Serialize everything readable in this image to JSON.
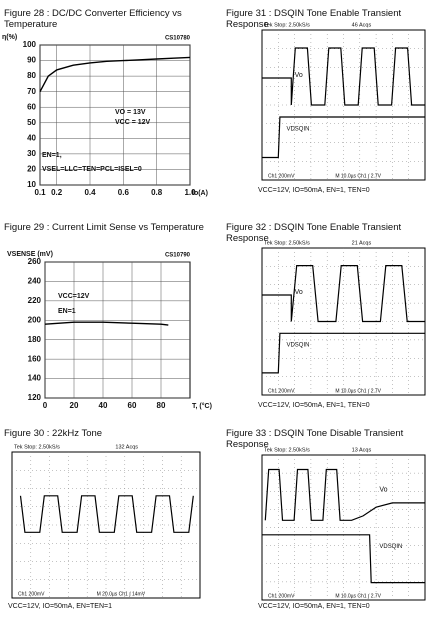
{
  "chart_data": [
    {
      "type": "line",
      "title": "Figure 28 : DC/DC Converter Efficiency vs Temperature",
      "code": "CS10780",
      "y_label": "η(%)",
      "x_label": "Io(A)",
      "x": [
        0.1,
        0.15,
        0.2,
        0.3,
        0.4,
        0.5,
        0.6,
        0.7,
        0.8,
        0.9,
        1.0
      ],
      "series": [
        {
          "color": "#000000",
          "values": [
            70,
            80,
            84,
            87,
            88.5,
            89.5,
            90,
            90.5,
            91,
            91.5,
            92
          ]
        }
      ],
      "xlim": [
        0.1,
        1.0
      ],
      "xticks": [
        0.1,
        0.2,
        0.4,
        0.6,
        0.8,
        {
          "value": 1,
          "label": "1.0"
        }
      ],
      "ylim": [
        10,
        100
      ],
      "yticks": [
        10,
        20,
        30,
        40,
        50,
        60,
        70,
        80,
        90,
        100
      ],
      "grid": true,
      "annotations": [
        "VO = 13V",
        "VCC = 12V",
        "EN=1,",
        "VSEL=LLC=TEN=PCL=ISEL=0"
      ]
    },
    {
      "type": "line",
      "title": "Figure 29 : Current Limit Sense vs Temperature",
      "code": "CS10790",
      "y_label": "VSENSE (mV)",
      "x_label": "T, (°C)",
      "x": [
        0,
        10,
        20,
        40,
        60,
        80,
        85
      ],
      "series": [
        {
          "color": "#000000",
          "values": [
            196,
            197,
            198,
            198,
            197,
            196,
            195
          ]
        }
      ],
      "xlim": [
        0,
        100
      ],
      "xticks": [
        0,
        20,
        40,
        60,
        80
      ],
      "ylim": [
        120,
        260
      ],
      "yticks": [
        120,
        140,
        160,
        180,
        200,
        220,
        240,
        260
      ],
      "grid": true,
      "annotations": [
        "VCC=12V",
        "EN=1"
      ]
    }
  ],
  "scopes": [
    {
      "title": "Figure 31 : DSQIN Tone Enable Transient Response",
      "rate": "Tek Stop: 2.50kS/s",
      "acqs": "46 Acqs",
      "labels": [
        "Vo",
        "VDSQIN"
      ],
      "footer": [
        "Ch1 200mV",
        "M 10.0µs Ch1 ∫ 2.7V"
      ],
      "caption": "VCC=12V, IO=50mA, EN=1, TEN=0"
    },
    {
      "title": "Figure 32 : DSQIN Tone Enable Transient Response",
      "rate": "Tek Stop: 2.50kS/s",
      "acqs": "21 Acqs",
      "labels": [
        "Vo",
        "VDSQIN"
      ],
      "footer": [
        "Ch1 200mV",
        "M 10.0µs Ch1 ∫ 2.7V"
      ],
      "caption": "VCC=12V, IO=50mA, EN=1, TEN=0"
    },
    {
      "title": "Figure 30 : 22kHz Tone",
      "rate": "Tek Stop: 2.50kS/s",
      "acqs": "132 Acqs",
      "labels": [],
      "footer": [
        "Ch1 200mV",
        "M 20.0µs Ch1 ∫ 14mV"
      ],
      "caption": "VCC=12V, IO=50mA, EN=TEN=1"
    },
    {
      "title": "Figure 33 : DSQIN Tone Disable Transient Response",
      "rate": "Tek Stop: 2.50kS/s",
      "acqs": "13 Acqs",
      "labels": [
        "Vo",
        "VDSQIN"
      ],
      "footer": [
        "Ch1 200mV",
        "M 10.0µs Ch1 ∫ 2.7V"
      ],
      "caption": "VCC=12V, IO=50mA, EN=1, TEN=0"
    }
  ]
}
